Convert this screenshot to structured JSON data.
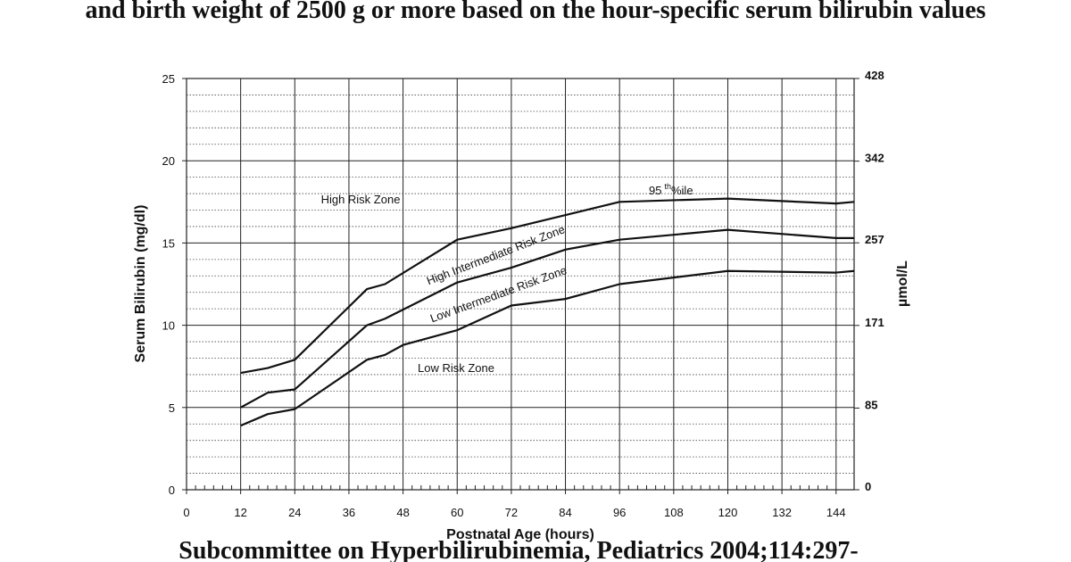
{
  "chart_data": {
    "type": "line",
    "title": "and birth weight of 2500 g or more based on the hour-specific serum bilirubin values",
    "caption": "Subcommittee on Hyperbilirubinemia,   Pediatrics 2004;114:297-",
    "x_label": "Postnatal Age (hours)",
    "y_label": "Serum Bilirubin (mg/dl)",
    "y2_label": "µmol/L",
    "xlim": [
      0,
      148
    ],
    "xticks": [
      0,
      12,
      24,
      36,
      48,
      60,
      72,
      84,
      96,
      108,
      120,
      132,
      144
    ],
    "ylim": [
      0,
      25
    ],
    "yticks": [
      0,
      5,
      10,
      15,
      20,
      25
    ],
    "y2lim": [
      0,
      428
    ],
    "y2ticks": [
      0,
      85,
      171,
      257,
      342,
      428
    ],
    "grid": true,
    "annotations": {
      "high_risk": "High Risk Zone",
      "high_intermediate": "High Intermediate Risk Zone",
      "low_intermediate": "Low Intermediate Risk Zone",
      "low_risk": "Low Risk Zone",
      "percentile": {
        "number": "95",
        "suffix": "th",
        "unit": "%ile"
      }
    },
    "series": [
      {
        "color": "#111111",
        "x": [
          12,
          18,
          24,
          40,
          44,
          60,
          72,
          96,
          120,
          144,
          148
        ],
        "values": [
          7.1,
          7.4,
          7.9,
          12.2,
          12.5,
          15.2,
          15.9,
          17.5,
          17.7,
          17.4,
          17.5
        ]
      },
      {
        "color": "#111111",
        "x": [
          12,
          18,
          24,
          40,
          44,
          60,
          72,
          84,
          96,
          120,
          144,
          148
        ],
        "values": [
          5.0,
          5.9,
          6.1,
          10.0,
          10.4,
          12.6,
          13.5,
          14.6,
          15.2,
          15.8,
          15.3,
          15.3
        ]
      },
      {
        "color": "#111111",
        "x": [
          12,
          18,
          24,
          40,
          44,
          48,
          60,
          72,
          84,
          96,
          120,
          144,
          148
        ],
        "values": [
          3.9,
          4.6,
          4.9,
          7.9,
          8.2,
          8.8,
          9.7,
          11.2,
          11.6,
          12.5,
          13.3,
          13.2,
          13.3
        ]
      }
    ]
  }
}
